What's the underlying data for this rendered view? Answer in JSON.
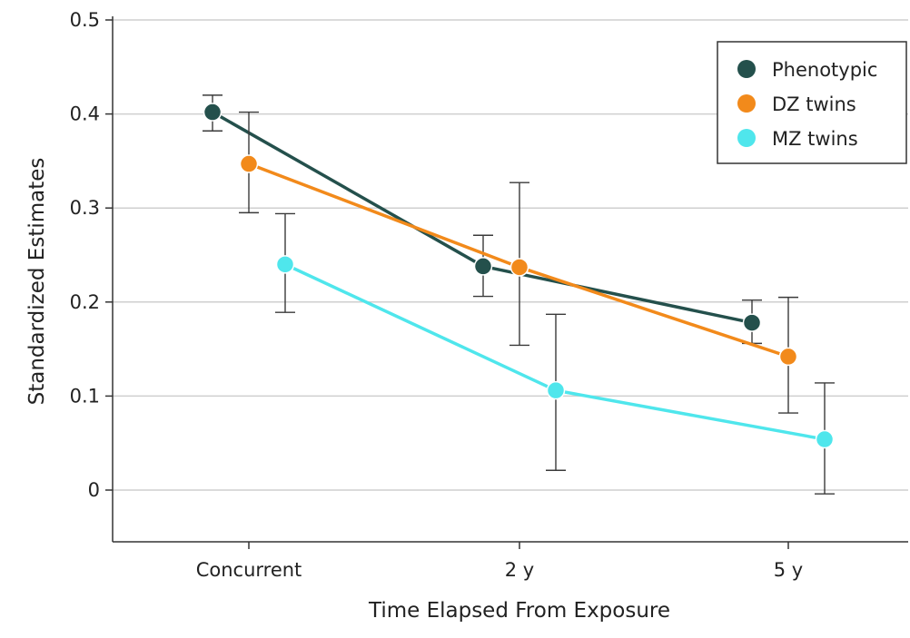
{
  "chart_data": {
    "type": "line",
    "title": "",
    "xlabel": "Time Elapsed From Exposure",
    "ylabel": "Standardized Estimates",
    "categories": [
      "Concurrent",
      "2 y",
      "5 y"
    ],
    "ylim": [
      -0.055,
      0.5
    ],
    "yticks": [
      0,
      0.1,
      0.2,
      0.3,
      0.4,
      0.5
    ],
    "ytick_labels": [
      "0",
      "0.1",
      "0.2",
      "0.3",
      "0.4",
      "0.5"
    ],
    "grid": "horizontal",
    "legend_position": "top-right",
    "series": [
      {
        "name": "Phenotypic",
        "color": "#24504c",
        "values": [
          0.402,
          0.238,
          0.178
        ],
        "lower": [
          0.382,
          0.206,
          0.156
        ],
        "upper": [
          0.42,
          0.271,
          0.202
        ]
      },
      {
        "name": "DZ twins",
        "color": "#f28a1b",
        "values": [
          0.347,
          0.237,
          0.142
        ],
        "lower": [
          0.295,
          0.154,
          0.082
        ],
        "upper": [
          0.402,
          0.327,
          0.205
        ]
      },
      {
        "name": "MZ twins",
        "color": "#4fe6ec",
        "values": [
          0.24,
          0.106,
          0.054
        ],
        "lower": [
          0.189,
          0.021,
          -0.004
        ],
        "upper": [
          0.294,
          0.187,
          0.114
        ]
      }
    ]
  }
}
